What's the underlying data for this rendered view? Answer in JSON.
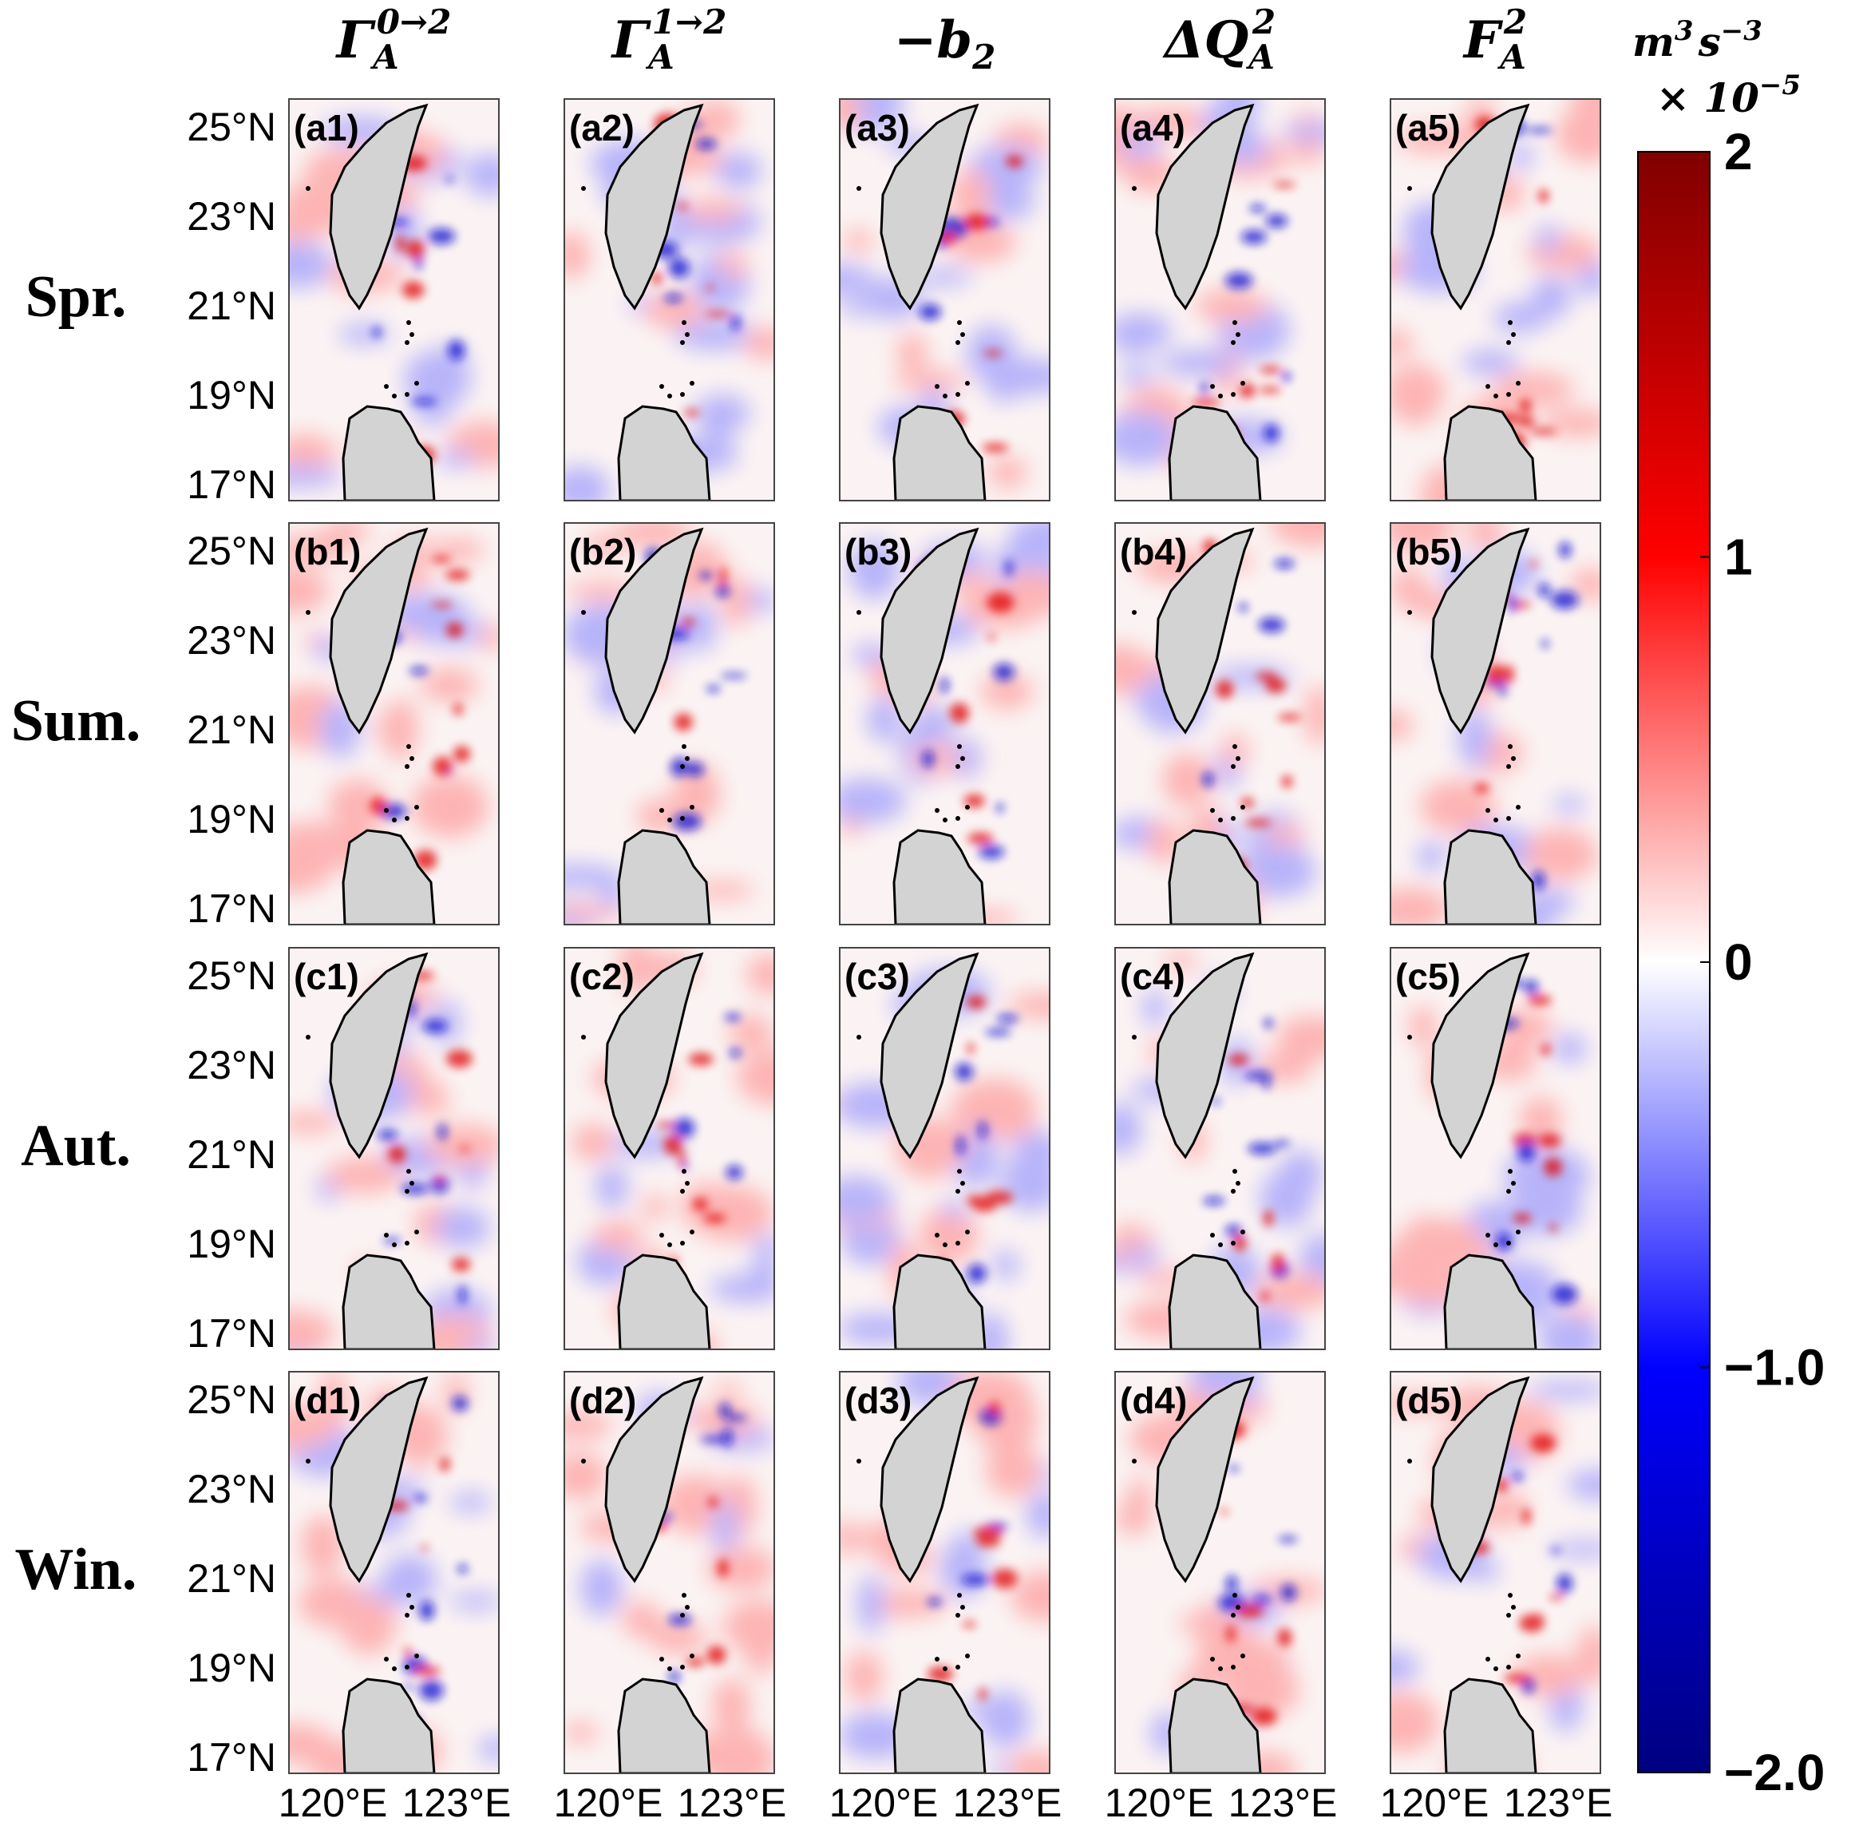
{
  "columns": [
    {
      "base": "Γ",
      "sub": "A",
      "sup": "0→2"
    },
    {
      "base": "Γ",
      "sub": "A",
      "sup": "1→2"
    },
    {
      "base": "−b",
      "sub": "2",
      "sup": ""
    },
    {
      "base": "ΔQ",
      "sub": "A",
      "sup": "2"
    },
    {
      "base": "F",
      "sub": "A",
      "sup": "2"
    }
  ],
  "rows": [
    {
      "season": "Spr.",
      "panels": [
        "(a1)",
        "(a2)",
        "(a3)",
        "(a4)",
        "(a5)"
      ]
    },
    {
      "season": "Sum.",
      "panels": [
        "(b1)",
        "(b2)",
        "(b3)",
        "(b4)",
        "(b5)"
      ]
    },
    {
      "season": "Aut.",
      "panels": [
        "(c1)",
        "(c2)",
        "(c3)",
        "(c4)",
        "(c5)"
      ]
    },
    {
      "season": "Win.",
      "panels": [
        "(d1)",
        "(d2)",
        "(d3)",
        "(d4)",
        "(d5)"
      ]
    }
  ],
  "lat_ticks": [
    "25°N",
    "23°N",
    "21°N",
    "19°N",
    "17°N"
  ],
  "lon_ticks": [
    "120°E",
    "123°E"
  ],
  "colorbar": {
    "unit_base": "m",
    "unit_exp1": "3",
    "unit_base2": "s",
    "unit_exp2": "−3",
    "scale_prefix": "× 10",
    "scale_exp": "−5",
    "ticks": [
      "2",
      "1",
      "0",
      "−1.0",
      "−2.0"
    ],
    "range": [
      -2.0,
      2.0
    ],
    "colors": {
      "max": "#800000",
      "high": "#ff0000",
      "mid": "#ffffff",
      "low": "#0000ff",
      "min": "#000080"
    }
  },
  "land_color": "#d3d3d3"
}
